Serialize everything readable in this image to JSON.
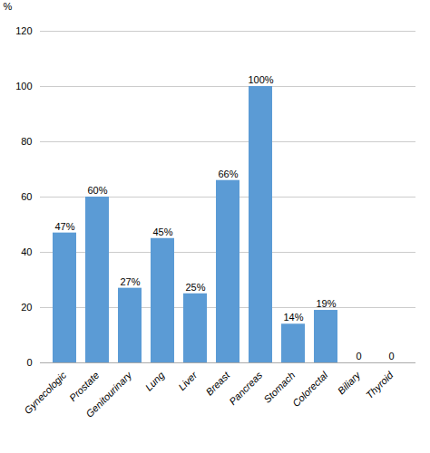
{
  "chart_data": {
    "type": "bar",
    "categories": [
      "Gynecologic",
      "Prostate",
      "Genitourinary",
      "Lung",
      "Liver",
      "Breast",
      "Pancreas",
      "Stomach",
      "Colorectal",
      "Biliary",
      "Thyroid"
    ],
    "values": [
      47,
      60,
      27,
      45,
      25,
      66,
      100,
      14,
      19,
      0,
      0
    ],
    "value_labels": [
      "47%",
      "60%",
      "27%",
      "45%",
      "25%",
      "66%",
      "100%",
      "14%",
      "19%",
      "0",
      "0"
    ],
    "data_labels": true,
    "color": "#5b9bd5",
    "ylabel": "%",
    "ylim": [
      0,
      120
    ],
    "yticks": [
      0,
      20,
      40,
      60,
      80,
      100,
      120
    ],
    "grid": true
  }
}
